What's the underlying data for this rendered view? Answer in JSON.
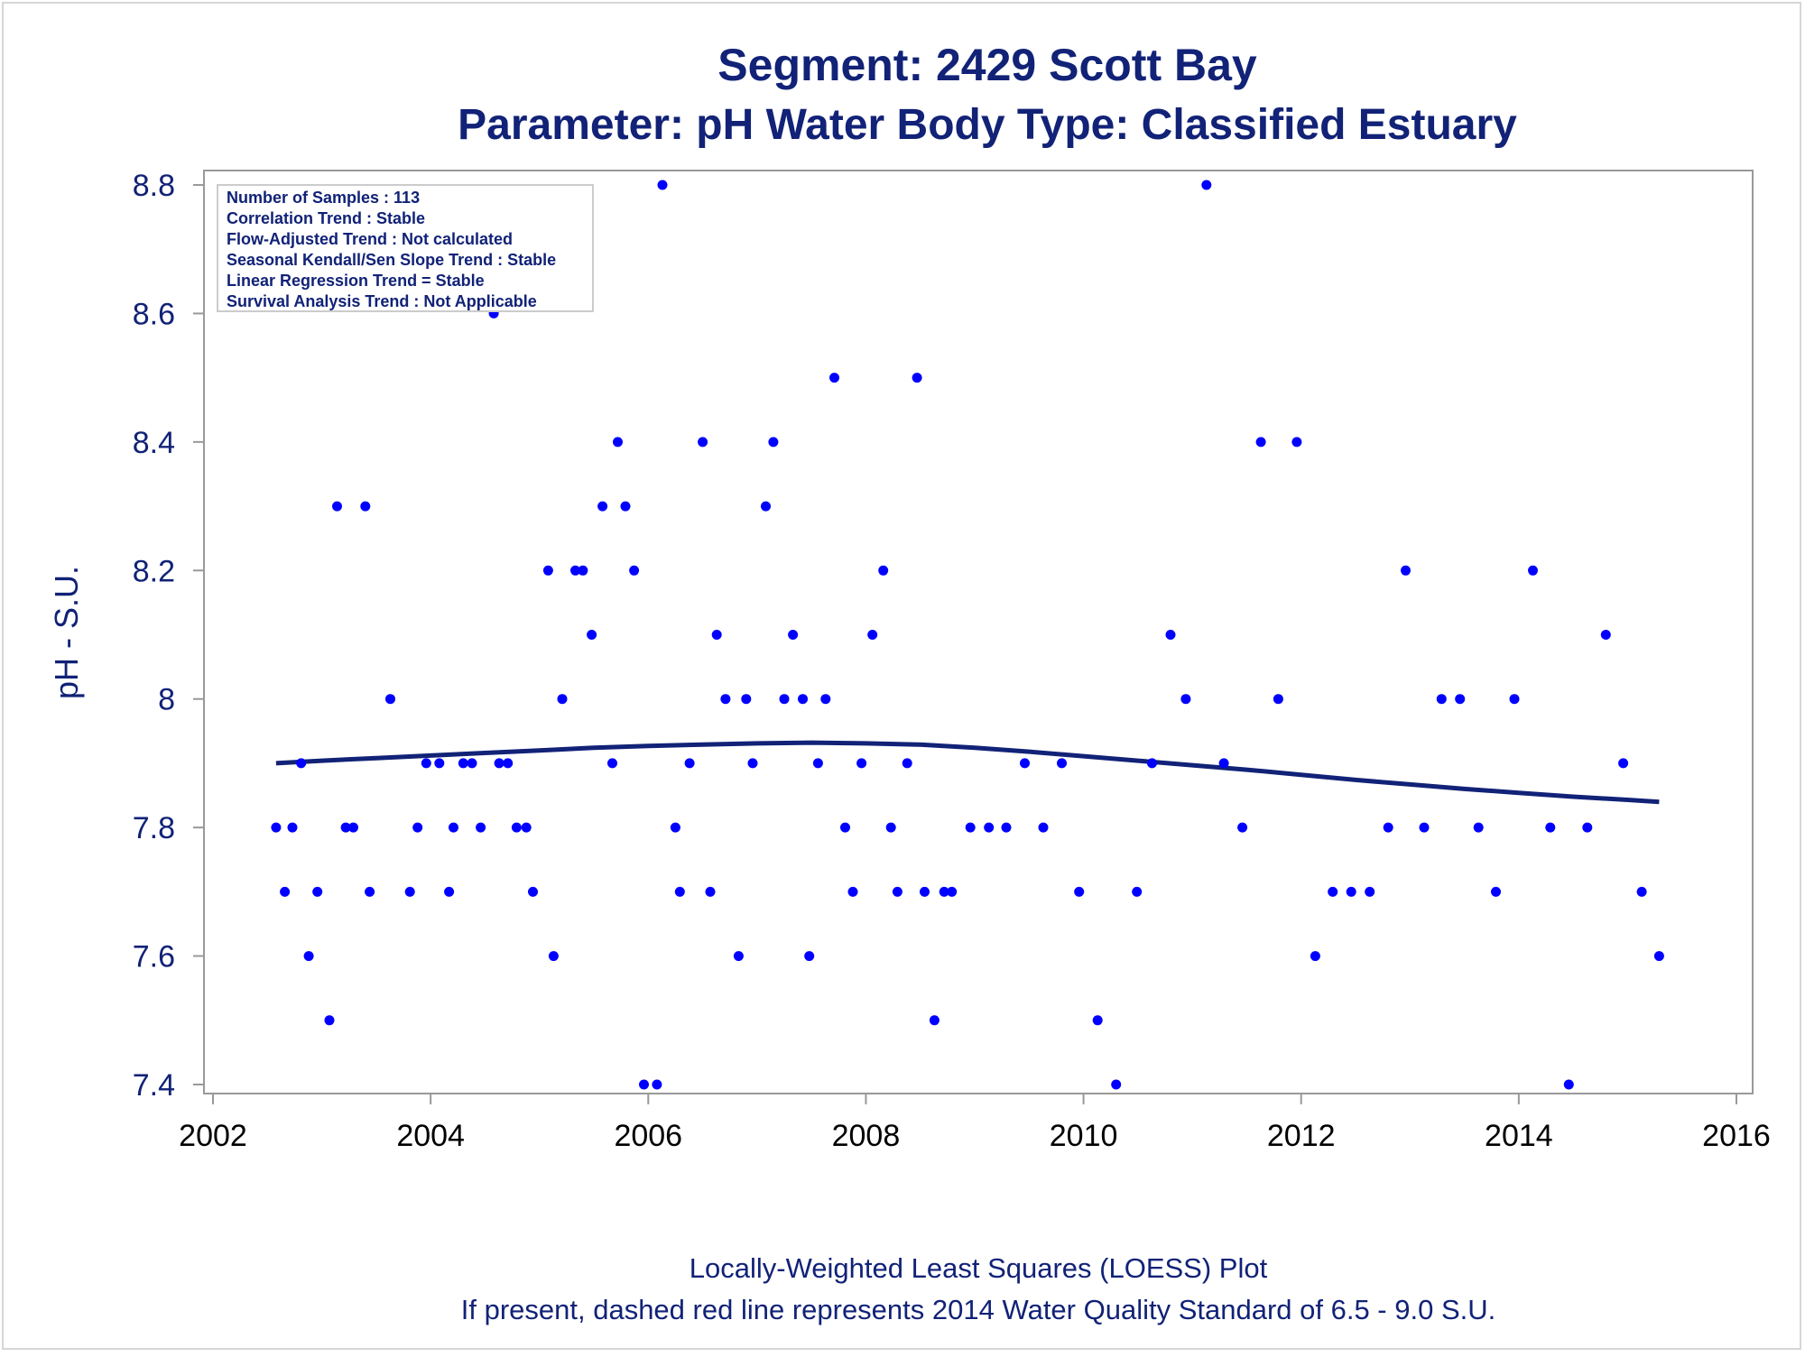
{
  "chart_data": {
    "type": "scatter",
    "title": "Segment: 2429  Scott Bay",
    "subtitle": "Parameter: pH   Water Body Type: Classified Estuary",
    "xlabel": "",
    "ylabel": "pH - S.U.",
    "xlim": [
      2002,
      2016
    ],
    "ylim": [
      7.375,
      8.825
    ],
    "x_ticks": [
      "2002",
      "2004",
      "2006",
      "2008",
      "2010",
      "2012",
      "2014",
      "2016"
    ],
    "y_ticks": [
      "7.4",
      "7.6",
      "7.8",
      "8",
      "8.2",
      "8.4",
      "8.6",
      "8.8"
    ],
    "grid": false,
    "colors": {
      "points": "#0000ff",
      "loess": "#112277",
      "text": "#112277",
      "frame": "#999999"
    },
    "inset": [
      "Number of Samples : 113",
      "Correlation Trend : Stable",
      "Flow-Adjusted Trend : Not calculated",
      "Seasonal Kendall/Sen Slope Trend : Stable",
      "Linear Regression Trend = Stable",
      "Survival Analysis Trend : Not Applicable"
    ],
    "footnotes": [
      "Locally-Weighted Least Squares (LOESS) Plot",
      "If present, dashed red line represents 2014 Water Quality Standard of 6.5 - 9.0 S.U."
    ],
    "series": [
      {
        "type": "scatter",
        "points": [
          [
            2002.58,
            7.8
          ],
          [
            2002.66,
            7.7
          ],
          [
            2002.73,
            7.8
          ],
          [
            2002.81,
            7.9
          ],
          [
            2002.88,
            7.6
          ],
          [
            2002.96,
            7.7
          ],
          [
            2003.07,
            7.5
          ],
          [
            2003.14,
            8.3
          ],
          [
            2003.22,
            7.8
          ],
          [
            2003.29,
            7.8
          ],
          [
            2003.4,
            8.3
          ],
          [
            2003.44,
            7.7
          ],
          [
            2003.63,
            8.0
          ],
          [
            2003.81,
            7.7
          ],
          [
            2003.88,
            7.8
          ],
          [
            2003.96,
            7.9
          ],
          [
            2004.08,
            7.9
          ],
          [
            2004.17,
            7.7
          ],
          [
            2004.21,
            7.8
          ],
          [
            2004.3,
            7.9
          ],
          [
            2004.38,
            7.9
          ],
          [
            2004.46,
            7.8
          ],
          [
            2004.58,
            8.6
          ],
          [
            2004.63,
            7.9
          ],
          [
            2004.71,
            7.9
          ],
          [
            2004.79,
            7.8
          ],
          [
            2004.88,
            7.8
          ],
          [
            2004.94,
            7.7
          ],
          [
            2005.08,
            8.2
          ],
          [
            2005.13,
            7.6
          ],
          [
            2005.21,
            8.0
          ],
          [
            2005.33,
            8.2
          ],
          [
            2005.4,
            8.2
          ],
          [
            2005.48,
            8.1
          ],
          [
            2005.58,
            8.3
          ],
          [
            2005.67,
            7.9
          ],
          [
            2005.72,
            8.4
          ],
          [
            2005.79,
            8.3
          ],
          [
            2005.87,
            8.2
          ],
          [
            2005.96,
            7.4
          ],
          [
            2006.08,
            7.4
          ],
          [
            2006.13,
            8.8
          ],
          [
            2006.25,
            7.8
          ],
          [
            2006.29,
            7.7
          ],
          [
            2006.38,
            7.9
          ],
          [
            2006.5,
            8.4
          ],
          [
            2006.57,
            7.7
          ],
          [
            2006.63,
            8.1
          ],
          [
            2006.71,
            8.0
          ],
          [
            2006.83,
            7.6
          ],
          [
            2006.9,
            8.0
          ],
          [
            2006.96,
            7.9
          ],
          [
            2007.08,
            8.3
          ],
          [
            2007.15,
            8.4
          ],
          [
            2007.25,
            8.0
          ],
          [
            2007.33,
            8.1
          ],
          [
            2007.42,
            8.0
          ],
          [
            2007.48,
            7.6
          ],
          [
            2007.56,
            7.9
          ],
          [
            2007.63,
            8.0
          ],
          [
            2007.71,
            8.5
          ],
          [
            2007.81,
            7.8
          ],
          [
            2007.88,
            7.7
          ],
          [
            2007.96,
            7.9
          ],
          [
            2008.06,
            8.1
          ],
          [
            2008.16,
            8.2
          ],
          [
            2008.23,
            7.8
          ],
          [
            2008.29,
            7.7
          ],
          [
            2008.38,
            7.9
          ],
          [
            2008.47,
            8.5
          ],
          [
            2008.54,
            7.7
          ],
          [
            2008.63,
            7.5
          ],
          [
            2008.72,
            7.7
          ],
          [
            2008.79,
            7.7
          ],
          [
            2008.96,
            7.8
          ],
          [
            2009.13,
            7.8
          ],
          [
            2009.29,
            7.8
          ],
          [
            2009.46,
            7.9
          ],
          [
            2009.63,
            7.8
          ],
          [
            2009.8,
            7.9
          ],
          [
            2009.96,
            7.7
          ],
          [
            2010.13,
            7.5
          ],
          [
            2010.3,
            7.4
          ],
          [
            2010.49,
            7.7
          ],
          [
            2010.63,
            7.9
          ],
          [
            2010.8,
            8.1
          ],
          [
            2010.94,
            8.0
          ],
          [
            2011.13,
            8.8
          ],
          [
            2011.29,
            7.9
          ],
          [
            2011.46,
            7.8
          ],
          [
            2011.63,
            8.4
          ],
          [
            2011.79,
            8.0
          ],
          [
            2011.96,
            8.4
          ],
          [
            2012.13,
            7.6
          ],
          [
            2012.29,
            7.7
          ],
          [
            2012.46,
            7.7
          ],
          [
            2012.63,
            7.7
          ],
          [
            2012.8,
            7.8
          ],
          [
            2012.96,
            8.2
          ],
          [
            2013.13,
            7.8
          ],
          [
            2013.29,
            8.0
          ],
          [
            2013.46,
            8.0
          ],
          [
            2013.63,
            7.8
          ],
          [
            2013.79,
            7.7
          ],
          [
            2013.96,
            8.0
          ],
          [
            2014.13,
            8.2
          ],
          [
            2014.29,
            7.8
          ],
          [
            2014.46,
            7.4
          ],
          [
            2014.63,
            7.8
          ],
          [
            2014.8,
            8.1
          ],
          [
            2014.96,
            7.9
          ],
          [
            2015.13,
            7.7
          ],
          [
            2015.29,
            7.6
          ]
        ]
      },
      {
        "type": "line",
        "points": [
          [
            2002.58,
            7.9
          ],
          [
            2003.0,
            7.904
          ],
          [
            2003.5,
            7.908
          ],
          [
            2004.0,
            7.912
          ],
          [
            2004.5,
            7.916
          ],
          [
            2005.0,
            7.92
          ],
          [
            2005.5,
            7.924
          ],
          [
            2006.0,
            7.927
          ],
          [
            2006.5,
            7.929
          ],
          [
            2007.0,
            7.931
          ],
          [
            2007.5,
            7.932
          ],
          [
            2008.0,
            7.931
          ],
          [
            2008.5,
            7.929
          ],
          [
            2009.0,
            7.924
          ],
          [
            2009.5,
            7.918
          ],
          [
            2010.0,
            7.911
          ],
          [
            2010.5,
            7.904
          ],
          [
            2011.0,
            7.897
          ],
          [
            2011.5,
            7.89
          ],
          [
            2012.0,
            7.882
          ],
          [
            2012.5,
            7.874
          ],
          [
            2013.0,
            7.867
          ],
          [
            2013.5,
            7.86
          ],
          [
            2014.0,
            7.854
          ],
          [
            2014.5,
            7.848
          ],
          [
            2015.0,
            7.843
          ],
          [
            2015.29,
            7.84
          ]
        ]
      }
    ]
  }
}
